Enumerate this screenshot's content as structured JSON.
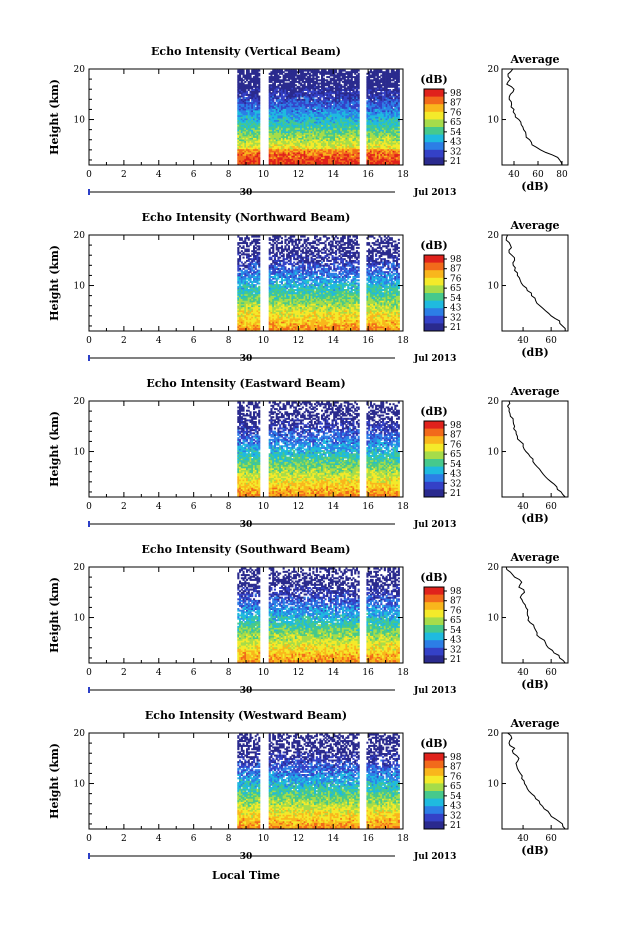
{
  "chart_data": {
    "type": "heatmap",
    "time_axis": {
      "title": "Local Time",
      "ticks": [
        0,
        2,
        4,
        6,
        8,
        10,
        12,
        14,
        16,
        18
      ],
      "range": [
        0,
        18
      ],
      "day_label": "30",
      "month_label": "Jul 2013"
    },
    "height_axis": {
      "label": "Height (km)",
      "ticks": [
        10,
        20
      ],
      "range": [
        1,
        20
      ]
    },
    "colorbar": {
      "unit": "(dB)",
      "ticks": [
        "98",
        "87",
        "76",
        "65",
        "54",
        "43",
        "32",
        "21"
      ],
      "colors": [
        "#e0221c",
        "#f26a1b",
        "#f9b61c",
        "#f4ea2a",
        "#a6dc4a",
        "#46c98c",
        "#1fbadf",
        "#2c7ee6",
        "#3441c7",
        "#2a2a8e"
      ]
    },
    "data_gaps_hours": [
      [
        9.8,
        10.25
      ],
      [
        15.5,
        15.8
      ]
    ],
    "data_start_hour": 8.5,
    "panels": [
      {
        "title": "Echo Intensity (Vertical Beam)",
        "avg_title": "Average",
        "avg_xlabel": "(dB)",
        "avg_xticks": [
          40,
          60,
          80
        ],
        "avg_xrange": [
          30,
          85
        ],
        "avg_profile": {
          "height_km": [
            1,
            2,
            3,
            4,
            5,
            6,
            7,
            8,
            9,
            10,
            11,
            12,
            13,
            14,
            15,
            16,
            17,
            18,
            19,
            20
          ],
          "db": [
            80,
            78,
            72,
            62,
            55,
            53,
            50,
            48,
            46,
            44,
            41,
            40,
            38,
            36,
            37,
            40,
            34,
            37,
            35,
            39
          ]
        }
      },
      {
        "title": "Echo Intensity (Northward Beam)",
        "avg_title": "Average",
        "avg_xlabel": "(dB)",
        "avg_xticks": [
          40,
          60
        ],
        "avg_xrange": [
          25,
          72
        ],
        "avg_profile": {
          "height_km": [
            1,
            2,
            3,
            4,
            5,
            6,
            7,
            8,
            9,
            10,
            11,
            12,
            13,
            14,
            15,
            16,
            17,
            18,
            19,
            20
          ],
          "db": [
            70,
            68,
            66,
            60,
            56,
            52,
            49,
            46,
            43,
            40,
            38,
            36,
            34,
            33,
            34,
            32,
            30,
            31,
            28,
            29
          ]
        }
      },
      {
        "title": "Echo Intensity (Eastward Beam)",
        "avg_title": "Average",
        "avg_xlabel": "(dB)",
        "avg_xticks": [
          40,
          60
        ],
        "avg_xrange": [
          25,
          72
        ],
        "avg_profile": {
          "height_km": [
            1,
            2,
            3,
            4,
            5,
            6,
            7,
            8,
            9,
            10,
            11,
            12,
            13,
            14,
            15,
            16,
            17,
            18,
            19,
            20
          ],
          "db": [
            70,
            67,
            64,
            60,
            56,
            53,
            50,
            47,
            45,
            42,
            40,
            38,
            36,
            35,
            34,
            33,
            31,
            30,
            29,
            30
          ]
        }
      },
      {
        "title": "Echo Intensity (Southward Beam)",
        "avg_title": "Average",
        "avg_xlabel": "(dB)",
        "avg_xticks": [
          40,
          60
        ],
        "avg_xrange": [
          25,
          72
        ],
        "avg_profile": {
          "height_km": [
            1,
            2,
            3,
            4,
            5,
            6,
            7,
            8,
            9,
            10,
            11,
            12,
            13,
            14,
            15,
            16,
            17,
            18,
            19,
            20
          ],
          "db": [
            70,
            66,
            62,
            58,
            56,
            52,
            50,
            48,
            45,
            44,
            43,
            42,
            40,
            38,
            41,
            37,
            39,
            34,
            31,
            28
          ]
        }
      },
      {
        "title": "Echo Intensity (Westward Beam)",
        "avg_title": "Average",
        "avg_xlabel": "(dB)",
        "avg_xticks": [
          40,
          60
        ],
        "avg_xrange": [
          25,
          72
        ],
        "avg_profile": {
          "height_km": [
            1,
            2,
            3,
            4,
            5,
            6,
            7,
            8,
            9,
            10,
            11,
            12,
            13,
            14,
            15,
            16,
            17,
            18,
            19,
            20
          ],
          "db": [
            70,
            68,
            63,
            59,
            55,
            52,
            49,
            46,
            43,
            41,
            39,
            38,
            36,
            35,
            37,
            33,
            34,
            30,
            32,
            29
          ]
        }
      }
    ]
  }
}
